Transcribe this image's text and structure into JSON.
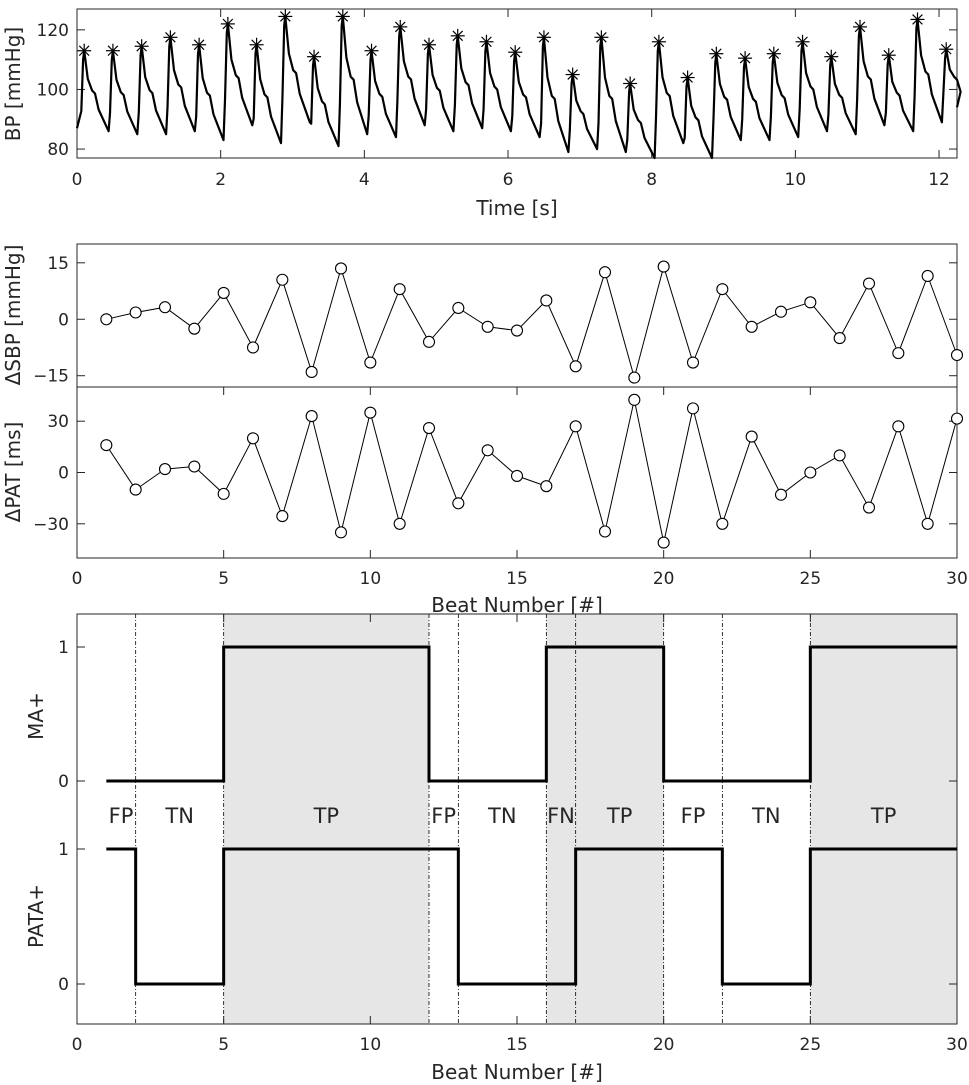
{
  "chart_data": [
    {
      "type": "line",
      "xlabel": "Time [s]",
      "ylabel": "BP [mmHg]",
      "xlim": [
        0,
        12.25
      ],
      "ylim": [
        77,
        127
      ],
      "xticks": [
        0,
        2,
        4,
        6,
        8,
        10,
        12
      ],
      "yticks": [
        80,
        100,
        120
      ],
      "marker": "asterisk",
      "beats": [
        {
          "t": 0.1,
          "peak": 113,
          "dia": 86
        },
        {
          "t": 0.5,
          "peak": 113,
          "dia": 85
        },
        {
          "t": 0.9,
          "peak": 114.5,
          "dia": 85
        },
        {
          "t": 1.3,
          "peak": 117.5,
          "dia": 86
        },
        {
          "t": 1.7,
          "peak": 115,
          "dia": 83
        },
        {
          "t": 2.1,
          "peak": 122,
          "dia": 88
        },
        {
          "t": 2.5,
          "peak": 115,
          "dia": 82
        },
        {
          "t": 2.9,
          "peak": 124.5,
          "dia": 89
        },
        {
          "t": 3.3,
          "peak": 111,
          "dia": 81
        },
        {
          "t": 3.7,
          "peak": 124.5,
          "dia": 85
        },
        {
          "t": 4.1,
          "peak": 113,
          "dia": 84
        },
        {
          "t": 4.5,
          "peak": 121,
          "dia": 88
        },
        {
          "t": 4.9,
          "peak": 115,
          "dia": 86
        },
        {
          "t": 5.3,
          "peak": 118,
          "dia": 87
        },
        {
          "t": 5.7,
          "peak": 116,
          "dia": 86
        },
        {
          "t": 6.1,
          "peak": 112.5,
          "dia": 84
        },
        {
          "t": 6.5,
          "peak": 117.5,
          "dia": 79
        },
        {
          "t": 6.9,
          "peak": 105,
          "dia": 80
        },
        {
          "t": 7.3,
          "peak": 117.5,
          "dia": 79
        },
        {
          "t": 7.7,
          "peak": 102,
          "dia": 77
        },
        {
          "t": 8.1,
          "peak": 116,
          "dia": 82
        },
        {
          "t": 8.5,
          "peak": 104,
          "dia": 77
        },
        {
          "t": 8.9,
          "peak": 112,
          "dia": 83
        },
        {
          "t": 9.3,
          "peak": 110.5,
          "dia": 83
        },
        {
          "t": 9.7,
          "peak": 112,
          "dia": 84
        },
        {
          "t": 10.1,
          "peak": 116,
          "dia": 86
        },
        {
          "t": 10.5,
          "peak": 111,
          "dia": 85
        },
        {
          "t": 10.9,
          "peak": 121,
          "dia": 88
        },
        {
          "t": 11.3,
          "peak": 111.5,
          "dia": 86
        },
        {
          "t": 11.7,
          "peak": 123.5,
          "dia": 89
        },
        {
          "t": 12.1,
          "peak": 113.5,
          "dia": 94
        }
      ]
    },
    {
      "type": "line",
      "xlabel": "",
      "ylabel": "ΔSBP [mmHg]",
      "xlim": [
        0,
        30
      ],
      "ylim": [
        -18,
        20
      ],
      "yticks": [
        -15,
        0,
        15
      ],
      "marker": "circle",
      "x": [
        1,
        2,
        3,
        4,
        5,
        6,
        7,
        8,
        9,
        10,
        11,
        12,
        13,
        14,
        15,
        16,
        17,
        18,
        19,
        20,
        21,
        22,
        23,
        24,
        25,
        26,
        27,
        28,
        29,
        30
      ],
      "values": [
        0,
        1.8,
        3.2,
        -2.5,
        7,
        -7.5,
        10.5,
        -14,
        13.5,
        -11.5,
        8,
        -6,
        3,
        -2,
        -3,
        5,
        -12.5,
        12.5,
        -15.5,
        14,
        -11.5,
        8,
        -2,
        2,
        4.5,
        -5,
        9.5,
        -9,
        11.5,
        -9.5
      ]
    },
    {
      "type": "line",
      "xlabel": "Beat Number [#]",
      "ylabel": "ΔPAT [ms]",
      "xlim": [
        0,
        30
      ],
      "ylim": [
        -50,
        50
      ],
      "xticks": [
        0,
        5,
        10,
        15,
        20,
        25,
        30
      ],
      "yticks": [
        -30,
        0,
        30
      ],
      "marker": "circle",
      "x": [
        1,
        2,
        3,
        4,
        5,
        6,
        7,
        8,
        9,
        10,
        11,
        12,
        13,
        14,
        15,
        16,
        17,
        18,
        19,
        20,
        21,
        22,
        23,
        24,
        25,
        26,
        27,
        28,
        29,
        30
      ],
      "values": [
        16,
        -10,
        2,
        3.5,
        -12.5,
        20,
        -25.5,
        33,
        -35,
        35,
        -30,
        26,
        -18,
        13,
        -2,
        -8,
        27,
        -34.5,
        42.5,
        -41,
        37.5,
        -30,
        21,
        -13,
        0,
        10,
        -20.5,
        27,
        -30,
        31.5
      ]
    },
    {
      "type": "line",
      "xlabel": "Beat Number [#]",
      "ylabel_top": "MA+",
      "ylabel_bottom": "PATA+",
      "xlim": [
        0,
        30
      ],
      "xticks": [
        0,
        5,
        10,
        15,
        20,
        25,
        30
      ],
      "yticks": [
        0,
        1
      ],
      "step": "post",
      "series": [
        {
          "name": "MA+",
          "x": [
            1,
            5,
            12,
            16,
            20,
            25,
            30
          ],
          "values": [
            0,
            1,
            0,
            1,
            0,
            1,
            1
          ]
        },
        {
          "name": "PATA+",
          "x": [
            1,
            2,
            5,
            13,
            17,
            22,
            25,
            30
          ],
          "values": [
            1,
            0,
            1,
            0,
            1,
            0,
            1,
            1
          ]
        }
      ],
      "regions": [
        {
          "label": "FP",
          "from": 1,
          "to": 2,
          "shaded": false
        },
        {
          "label": "TN",
          "from": 2,
          "to": 5,
          "shaded": false
        },
        {
          "label": "TP",
          "from": 5,
          "to": 12,
          "shaded": true
        },
        {
          "label": "FP",
          "from": 12,
          "to": 13,
          "shaded": false
        },
        {
          "label": "TN",
          "from": 13,
          "to": 16,
          "shaded": false
        },
        {
          "label": "FN",
          "from": 16,
          "to": 17,
          "shaded": true
        },
        {
          "label": "TP",
          "from": 17,
          "to": 20,
          "shaded": true
        },
        {
          "label": "FP",
          "from": 20,
          "to": 22,
          "shaded": false
        },
        {
          "label": "TN",
          "from": 22,
          "to": 25,
          "shaded": false
        },
        {
          "label": "TP",
          "from": 25,
          "to": 30,
          "shaded": true
        }
      ],
      "dividers": [
        2,
        5,
        12,
        13,
        16,
        17,
        20,
        22,
        25
      ]
    }
  ]
}
